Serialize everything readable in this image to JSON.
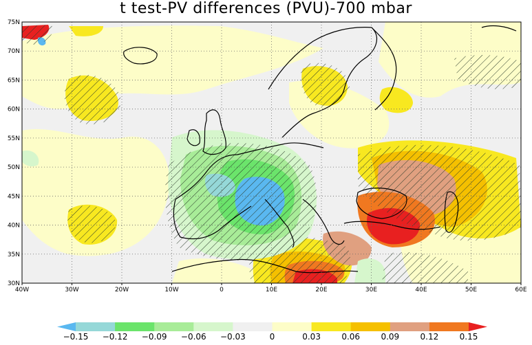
{
  "title": "t test-PV differences (PVU)-700 mbar",
  "map": {
    "lon_labels": [
      "40W",
      "30W",
      "20W",
      "10W",
      "0",
      "10E",
      "20E",
      "30E",
      "40E",
      "50E",
      "60E"
    ],
    "lat_labels": [
      "75N",
      "70N",
      "65N",
      "60N",
      "55N",
      "50N",
      "45N",
      "40N",
      "35N",
      "30N"
    ],
    "lon_range": [
      -40,
      60
    ],
    "lat_range": [
      30,
      75
    ],
    "gridlines": "dotted"
  },
  "colorbar": {
    "labels": [
      "-0.15",
      "-0.12",
      "-0.09",
      "-0.06",
      "-0.03",
      "0",
      "0.03",
      "0.06",
      "0.09",
      "0.12",
      "0.15"
    ],
    "colors": [
      "#5ab8f0",
      "#95d8d8",
      "#6be46b",
      "#a8ec98",
      "#d6f6cc",
      "#f0f0f0",
      "#fdfdc8",
      "#f8e820",
      "#f5c000",
      "#e0a080",
      "#f07820",
      "#e82020"
    ]
  },
  "colors": {
    "neutral": "#f0f0f0",
    "coast": "#000000",
    "hatch": "#2a3a2a"
  }
}
